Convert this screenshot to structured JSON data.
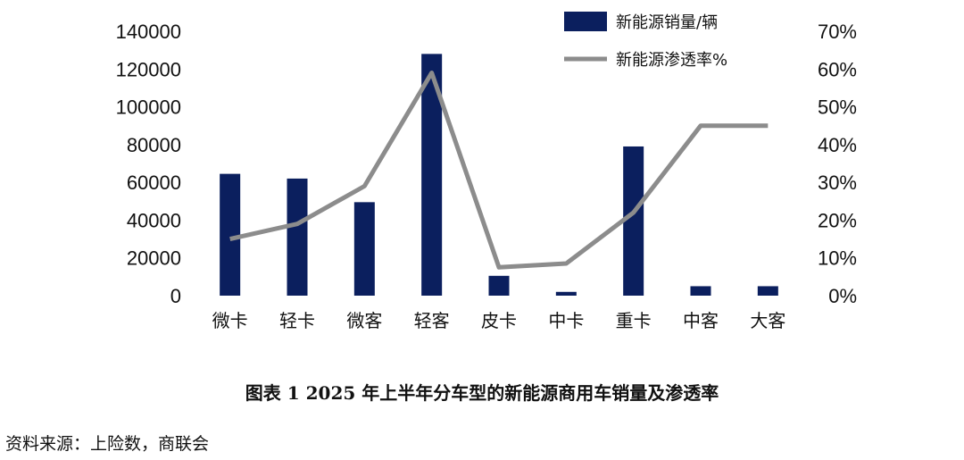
{
  "chart_data": {
    "type": "bar",
    "categories": [
      "微卡",
      "轻卡",
      "微客",
      "轻客",
      "皮卡",
      "中卡",
      "重卡",
      "中客",
      "大客"
    ],
    "series": [
      {
        "name": "新能源销量/辆",
        "type": "bar",
        "axis": "left",
        "values": [
          64500,
          62000,
          49500,
          128000,
          10500,
          2000,
          79000,
          5000,
          5000
        ]
      },
      {
        "name": "新能源渗透率%",
        "type": "line",
        "axis": "right",
        "values": [
          15,
          19,
          29,
          59,
          7.5,
          8.5,
          22,
          45,
          45
        ]
      }
    ],
    "ylim_left": [
      0,
      140000
    ],
    "yticks_left": [
      "0",
      "20000",
      "40000",
      "60000",
      "80000",
      "100000",
      "120000",
      "140000"
    ],
    "ylim_right": [
      0,
      70
    ],
    "yticks_right": [
      "0%",
      "10%",
      "20%",
      "30%",
      "40%",
      "50%",
      "60%",
      "70%"
    ],
    "legend_position": "top-right",
    "colors": {
      "bar": "#0b1f5e",
      "line": "#8c8c8c"
    },
    "grid": false
  },
  "caption": "图表 1 2025 年上半年分车型的新能源商用车销量及渗透率",
  "source": "资料来源：上险数，商联会"
}
